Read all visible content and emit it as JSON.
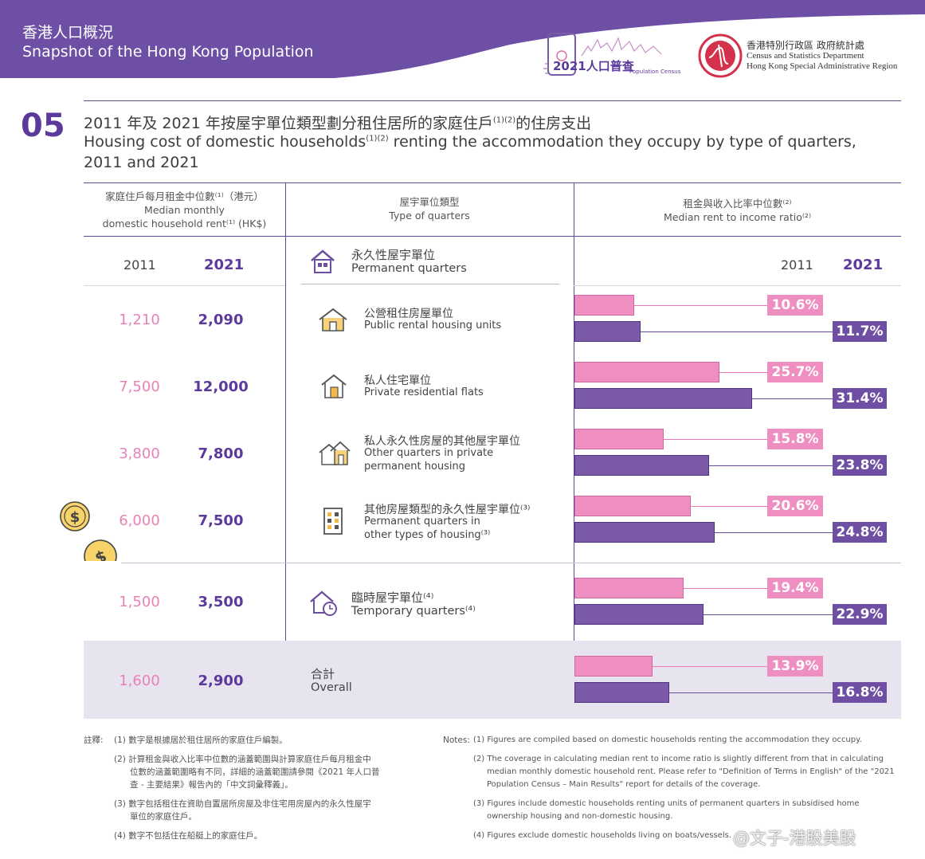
{
  "header": {
    "title_zh": "香港人口概況",
    "title_en": "Snapshot of the Hong Kong Population",
    "census_logo_text": "2021人口普查",
    "census_logo_sub": "Population Census",
    "dept_zh": "香港特別行政區 政府統計處",
    "dept_en1": "Census and Statistics Department",
    "dept_en2": "Hong Kong Special Administrative Region",
    "colors": {
      "purple": "#5c3a9c",
      "banner": "#6e4fa6",
      "pink": "#ef8ec0"
    }
  },
  "section": {
    "number": "05",
    "title_zh_pre": "2011 年及 2021 年按屋宇單位類型劃分租住居所的家庭住戶",
    "title_zh_sup": "(1)(2)",
    "title_zh_post": "的住房支出",
    "title_en_pre": "Housing cost of domestic households",
    "title_en_sup": "(1)(2)",
    "title_en_post": " renting the accommodation they occupy by type of quarters,",
    "title_en_line2": "2011 and 2021"
  },
  "table": {
    "col1_zh": "家庭住戶每月租金中位數⁽¹⁾（港元）",
    "col1_en1": "Median monthly",
    "col1_en2": "domestic household rent⁽¹⁾ (HK$)",
    "col2_zh": "屋宇單位類型",
    "col2_en": "Type of quarters",
    "col3_zh": "租金與收入比率中位數⁽²⁾",
    "col3_en": "Median rent to income ratio⁽²⁾",
    "year_a": "2011",
    "year_b": "2021",
    "permanent_zh": "永久性屋宇單位",
    "permanent_en": "Permanent quarters"
  },
  "rows": [
    {
      "zh": "公營租住房屋單位",
      "en1": "Public rental housing units",
      "en2": "",
      "rent_2011": "1,210",
      "rent_2021": "2,090",
      "ratio_2011_label": "10.6%",
      "ratio_2021_label": "11.7%",
      "icon": "house-icon"
    },
    {
      "zh": "私人住宅單位",
      "en1": "Private residential flats",
      "en2": "",
      "rent_2011": "7,500",
      "rent_2021": "12,000",
      "ratio_2011_label": "25.7%",
      "ratio_2021_label": "31.4%",
      "icon": "house-icon"
    },
    {
      "zh": "私人永久性房屋的其他屋宇單位",
      "en1": "Other quarters in private",
      "en2": "permanent housing",
      "rent_2011": "3,800",
      "rent_2021": "7,800",
      "ratio_2011_label": "15.8%",
      "ratio_2021_label": "23.8%",
      "icon": "house-icon"
    },
    {
      "zh": "其他房屋類型的永久性屋宇單位⁽³⁾",
      "en1": "Permanent quarters in",
      "en2": "other types of housing⁽³⁾",
      "rent_2011": "6,000",
      "rent_2021": "7,500",
      "ratio_2011_label": "20.6%",
      "ratio_2021_label": "24.8%",
      "icon": "building-icon"
    },
    {
      "zh": "臨時屋宇單位⁽⁴⁾",
      "en1": "Temporary quarters⁽⁴⁾",
      "en2": "",
      "rent_2011": "1,500",
      "rent_2021": "3,500",
      "ratio_2011_label": "19.4%",
      "ratio_2021_label": "22.9%",
      "icon": "house-clock-icon"
    },
    {
      "zh": "合計",
      "en1": "Overall",
      "en2": "",
      "rent_2011": "1,600",
      "rent_2021": "2,900",
      "ratio_2011_label": "13.9%",
      "ratio_2021_label": "16.8%",
      "icon": ""
    }
  ],
  "chart_data": {
    "type": "bar",
    "categories": [
      "Public rental housing units",
      "Private residential flats",
      "Other quarters in private permanent housing",
      "Permanent quarters in other types of housing",
      "Temporary quarters",
      "Overall"
    ],
    "series": [
      {
        "name": "2011",
        "values": [
          10.6,
          25.7,
          15.8,
          20.6,
          19.4,
          13.9
        ],
        "color": "#ef8ec0"
      },
      {
        "name": "2021",
        "values": [
          11.7,
          31.4,
          23.8,
          24.8,
          22.9,
          16.8
        ],
        "color": "#7b5ba8"
      }
    ],
    "title": "Median rent to income ratio",
    "ylabel": "",
    "xlim": [
      0,
      58
    ],
    "orientation": "horizontal"
  },
  "notes": {
    "zh_label": "註釋:",
    "zh": [
      "(1)  數字是根據居於租住居所的家庭住戶編製。",
      "(2)  計算租金與收入比率中位數的涵蓋範圍與計算家庭住戶每月租金中",
      "位數的涵蓋範圍略有不同，詳細的涵蓋範圍請參閱《2021 年人口普",
      "查 - 主要結果》報告內的「中文詞彙釋義」。",
      "(3)  數字包括租住在資助自置居所房屋及非住宅用房屋內的永久性屋宇",
      "單位的家庭住戶。",
      "(4)  數字不包括住在船艇上的家庭住戶。"
    ],
    "en_label": "Notes:",
    "en": [
      "(1)  Figures are compiled based on domestic households renting the accommodation they occupy.",
      "(2)  The coverage in calculating median rent to income ratio is slightly different from that in calculating",
      "median monthly domestic household rent. Please refer to \"Definition of Terms in English\" of the \"2021",
      "Population Census – Main Results\" report for details of the coverage.",
      "(3)  Figures include domestic households renting units of permanent quarters in subsidised home",
      "ownership housing and non-domestic housing.",
      "(4)  Figures exclude domestic households living on boats/vessels."
    ],
    "watermark": "@文子-港股美股"
  }
}
